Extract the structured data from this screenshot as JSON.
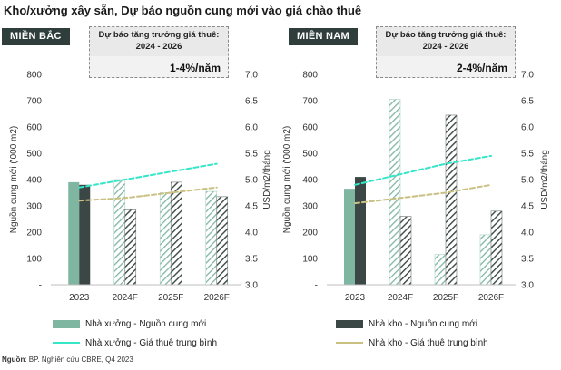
{
  "title": "Kho/xưởng xây sẵn, Dự báo nguồn cung mới vào giá chào thuê",
  "colors": {
    "factory_bar": "#7fb6a2",
    "warehouse_bar": "#3a4745",
    "factory_line": "#35e6c9",
    "warehouse_line": "#c9c082",
    "region_bg": "#2f3d3b"
  },
  "panels": [
    {
      "region": "MIỀN BẮC",
      "forecast_label": "Dự báo tăng trưởng giá thuê: 2024 - 2026",
      "forecast_value": "1-4%/năm"
    },
    {
      "region": "MIỀN NAM",
      "forecast_label": "Dự báo tăng trưởng giá thuê: 2024 - 2026",
      "forecast_value": "2-4%/năm"
    }
  ],
  "chart_data": [
    {
      "type": "bar",
      "panel": "MIỀN BẮC",
      "categories": [
        "2023",
        "2024F",
        "2025F",
        "2026F"
      ],
      "ylabel": "Nguồn cung mới ('000 m2)",
      "ylim": [
        0,
        800
      ],
      "yticks": [
        "-",
        "100",
        "200",
        "300",
        "400",
        "500",
        "600",
        "700",
        "800"
      ],
      "y2label": "USD/m2/tháng",
      "y2lim": [
        3.0,
        7.0
      ],
      "y2ticks": [
        "3.0",
        "3.5",
        "4.0",
        "4.5",
        "5.0",
        "5.5",
        "6.0",
        "6.5",
        "7.0"
      ],
      "series": [
        {
          "name": "Nhà xưởng - Nguồn cung mới",
          "kind": "bar",
          "axis": "left",
          "values": [
            390,
            400,
            350,
            355
          ],
          "forecast_hatched": true
        },
        {
          "name": "Nhà kho - Nguồn cung mới",
          "kind": "bar",
          "axis": "left",
          "values": [
            380,
            285,
            390,
            335
          ],
          "forecast_hatched": true
        },
        {
          "name": "Nhà xưởng - Giá thuê trung bình",
          "kind": "line",
          "axis": "right",
          "values": [
            4.85,
            5.0,
            5.15,
            5.3
          ]
        },
        {
          "name": "Nhà kho - Giá thuê trung bình",
          "kind": "line",
          "axis": "right",
          "values": [
            4.6,
            4.65,
            4.75,
            4.85
          ]
        }
      ]
    },
    {
      "type": "bar",
      "panel": "MIỀN NAM",
      "categories": [
        "2023",
        "2024F",
        "2025F",
        "2026F"
      ],
      "ylabel": "Nguồn cung mới ('000 m2)",
      "ylim": [
        0,
        800
      ],
      "yticks": [
        "-",
        "100",
        "200",
        "300",
        "400",
        "500",
        "600",
        "700",
        "800"
      ],
      "y2label": "USD/m2/tháng",
      "y2lim": [
        3.0,
        7.0
      ],
      "y2ticks": [
        "3.0",
        "3.5",
        "4.0",
        "4.5",
        "5.0",
        "5.5",
        "6.0",
        "6.5",
        "7.0"
      ],
      "series": [
        {
          "name": "Nhà xưởng - Nguồn cung mới",
          "kind": "bar",
          "axis": "left",
          "values": [
            365,
            705,
            115,
            190
          ],
          "forecast_hatched": true
        },
        {
          "name": "Nhà kho - Nguồn cung mới",
          "kind": "bar",
          "axis": "left",
          "values": [
            410,
            260,
            645,
            280
          ],
          "forecast_hatched": true
        },
        {
          "name": "Nhà xưởng - Giá thuê trung bình",
          "kind": "line",
          "axis": "right",
          "values": [
            4.9,
            5.1,
            5.3,
            5.45
          ]
        },
        {
          "name": "Nhà kho - Giá thuê trung bình",
          "kind": "line",
          "axis": "right",
          "values": [
            4.55,
            4.65,
            4.75,
            4.9
          ]
        }
      ]
    }
  ],
  "legend": [
    {
      "label": "Nhà xưởng - Nguồn cung mới",
      "kind": "bar",
      "color": "#7fb6a2"
    },
    {
      "label": "Nhà kho - Nguồn cung mới",
      "kind": "bar",
      "color": "#3a4745"
    },
    {
      "label": "Nhà xưởng - Giá thuê trung bình",
      "kind": "line",
      "color": "#35e6c9"
    },
    {
      "label": "Nhà kho - Giá thuê trung bình",
      "kind": "line",
      "color": "#c9c082"
    }
  ],
  "source_label": "Nguồn",
  "source_text": ": BP. Nghiên cứu CBRE, Q4 2023"
}
